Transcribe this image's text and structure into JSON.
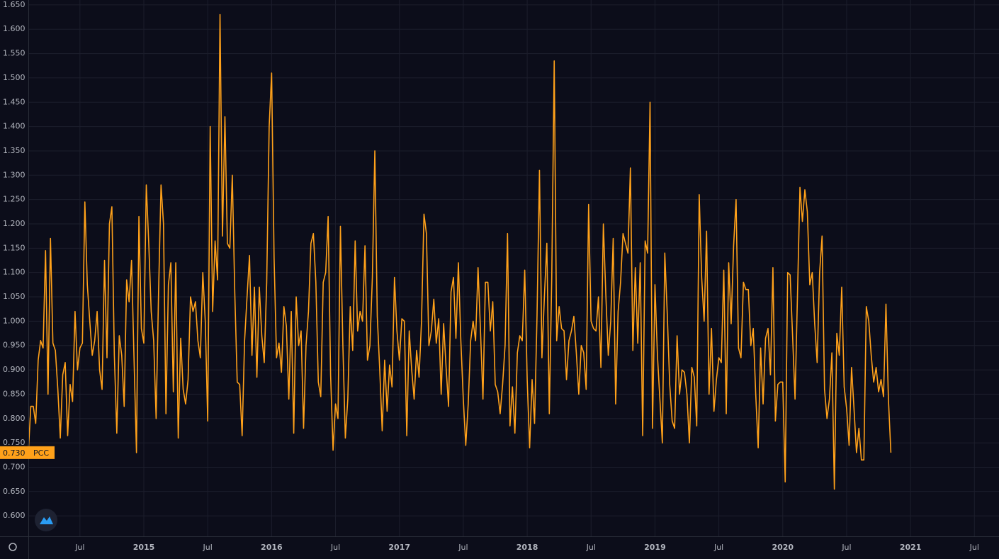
{
  "chart_data": {
    "type": "line",
    "series": [
      {
        "name": "PCC",
        "color": "#ffa11a",
        "last_value": {
          "value": 0.73,
          "label": "0.730"
        },
        "values": [
          0.73,
          0.825,
          0.825,
          0.79,
          0.92,
          0.96,
          0.945,
          1.145,
          0.85,
          1.17,
          0.955,
          0.94,
          0.86,
          0.76,
          0.89,
          0.915,
          0.765,
          0.87,
          0.835,
          1.02,
          0.9,
          0.945,
          0.955,
          1.245,
          1.075,
          1.0,
          0.93,
          0.96,
          1.02,
          0.9,
          0.86,
          1.125,
          0.925,
          1.2,
          1.235,
          0.93,
          0.77,
          0.97,
          0.93,
          0.825,
          1.085,
          1.04,
          1.125,
          0.925,
          0.73,
          1.215,
          0.985,
          0.955,
          1.28,
          1.16,
          1.02,
          0.96,
          0.8,
          1.06,
          1.28,
          1.2,
          0.81,
          1.075,
          1.12,
          0.855,
          1.12,
          0.76,
          0.965,
          0.86,
          0.83,
          0.88,
          1.05,
          1.02,
          1.04,
          0.96,
          0.925,
          1.1,
          1.0,
          0.795,
          1.4,
          1.02,
          1.165,
          1.085,
          1.63,
          1.175,
          1.42,
          1.16,
          1.15,
          1.3,
          1.06,
          0.875,
          0.87,
          0.765,
          0.96,
          1.05,
          1.135,
          0.93,
          1.07,
          0.885,
          1.07,
          0.97,
          0.915,
          1.08,
          1.4,
          1.51,
          1.13,
          0.925,
          0.955,
          0.895,
          1.03,
          0.99,
          0.84,
          1.02,
          0.77,
          1.05,
          0.95,
          0.98,
          0.78,
          0.95,
          1.02,
          1.16,
          1.18,
          1.08,
          0.875,
          0.845,
          1.08,
          1.1,
          1.215,
          0.89,
          0.735,
          0.83,
          0.8,
          1.195,
          0.95,
          0.76,
          0.84,
          1.03,
          0.94,
          1.165,
          0.98,
          1.02,
          1.0,
          1.155,
          0.92,
          0.95,
          1.09,
          1.35,
          1.01,
          0.9,
          0.775,
          0.92,
          0.815,
          0.91,
          0.865,
          1.09,
          0.98,
          0.92,
          1.005,
          1.0,
          0.765,
          0.98,
          0.9,
          0.84,
          0.94,
          0.885,
          1.0,
          1.22,
          1.18,
          0.95,
          0.98,
          1.045,
          0.955,
          1.005,
          0.85,
          0.995,
          0.905,
          0.825,
          1.06,
          1.09,
          0.965,
          1.12,
          0.96,
          0.84,
          0.745,
          0.83,
          0.96,
          1.0,
          0.96,
          1.11,
          0.98,
          0.84,
          1.08,
          1.08,
          0.98,
          1.04,
          0.87,
          0.855,
          0.81,
          0.87,
          0.95,
          1.18,
          0.785,
          0.865,
          0.77,
          0.935,
          0.97,
          0.96,
          1.105,
          0.88,
          0.74,
          0.88,
          0.79,
          1.01,
          1.31,
          0.925,
          1.05,
          1.16,
          0.81,
          1.09,
          1.535,
          0.96,
          1.03,
          0.985,
          0.98,
          0.88,
          0.96,
          0.98,
          1.01,
          0.935,
          0.85,
          0.95,
          0.935,
          0.86,
          1.24,
          1.0,
          0.985,
          0.98,
          1.05,
          0.905,
          1.2,
          1.055,
          0.93,
          1.0,
          1.17,
          0.83,
          1.02,
          1.08,
          1.18,
          1.16,
          1.14,
          1.315,
          0.94,
          1.11,
          0.955,
          1.12,
          0.765,
          1.165,
          1.14,
          1.45,
          0.78,
          1.075,
          0.93,
          0.84,
          0.75,
          1.14,
          1.015,
          0.87,
          0.795,
          0.78,
          0.97,
          0.85,
          0.9,
          0.895,
          0.85,
          0.75,
          0.905,
          0.885,
          0.785,
          1.26,
          1.09,
          1.0,
          1.185,
          0.85,
          0.985,
          0.815,
          0.88,
          0.925,
          0.915,
          1.105,
          0.81,
          1.12,
          0.995,
          1.155,
          1.25,
          0.945,
          0.925,
          1.08,
          1.065,
          1.065,
          0.95,
          0.985,
          0.85,
          0.74,
          0.945,
          0.83,
          0.965,
          0.985,
          0.89,
          1.11,
          0.795,
          0.87,
          0.875,
          0.875,
          0.67,
          1.1,
          1.095,
          0.97,
          0.84,
          1.055,
          1.275,
          1.205,
          1.27,
          1.225,
          1.075,
          1.1,
          0.995,
          0.915,
          1.1,
          1.175,
          0.86,
          0.8,
          0.84,
          0.935,
          0.655,
          0.975,
          0.93,
          1.07,
          0.865,
          0.82,
          0.745,
          0.905,
          0.82,
          0.73,
          0.78,
          0.715,
          0.715,
          1.03,
          1.0,
          0.93,
          0.875,
          0.905,
          0.855,
          0.88,
          0.845,
          1.035,
          0.84,
          0.73
        ]
      }
    ],
    "ylim": [
      0.558,
      1.66
    ],
    "yticks": [
      {
        "value": 0.6,
        "label": "0.600"
      },
      {
        "value": 0.65,
        "label": "0.650"
      },
      {
        "value": 0.7,
        "label": "0.700"
      },
      {
        "value": 0.75,
        "label": "0.750"
      },
      {
        "value": 0.8,
        "label": "0.800"
      },
      {
        "value": 0.85,
        "label": "0.850"
      },
      {
        "value": 0.9,
        "label": "0.900"
      },
      {
        "value": 0.95,
        "label": "0.950"
      },
      {
        "value": 1.0,
        "label": "1.000"
      },
      {
        "value": 1.05,
        "label": "1.050"
      },
      {
        "value": 1.1,
        "label": "1.100"
      },
      {
        "value": 1.15,
        "label": "1.150"
      },
      {
        "value": 1.2,
        "label": "1.200"
      },
      {
        "value": 1.25,
        "label": "1.250"
      },
      {
        "value": 1.3,
        "label": "1.300"
      },
      {
        "value": 1.35,
        "label": "1.350"
      },
      {
        "value": 1.4,
        "label": "1.400"
      },
      {
        "value": 1.45,
        "label": "1.450"
      },
      {
        "value": 1.5,
        "label": "1.500"
      },
      {
        "value": 1.55,
        "label": "1.550"
      },
      {
        "value": 1.6,
        "label": "1.600"
      },
      {
        "value": 1.65,
        "label": "1.650"
      }
    ],
    "xlim": [
      0,
      395
    ],
    "xticks": [
      {
        "value": 21,
        "label": "Jul"
      },
      {
        "value": 47,
        "label": "2015"
      },
      {
        "value": 73,
        "label": "Jul"
      },
      {
        "value": 99,
        "label": "2016"
      },
      {
        "value": 125,
        "label": "Jul"
      },
      {
        "value": 151,
        "label": "2017"
      },
      {
        "value": 177,
        "label": "Jul"
      },
      {
        "value": 203,
        "label": "2018"
      },
      {
        "value": 229,
        "label": "Jul"
      },
      {
        "value": 255,
        "label": "2019"
      },
      {
        "value": 281,
        "label": "Jul"
      },
      {
        "value": 307,
        "label": "2020"
      },
      {
        "value": 333,
        "label": "Jul"
      },
      {
        "value": 359,
        "label": "2021"
      },
      {
        "value": 385,
        "label": "Jul"
      }
    ],
    "grid": true
  }
}
